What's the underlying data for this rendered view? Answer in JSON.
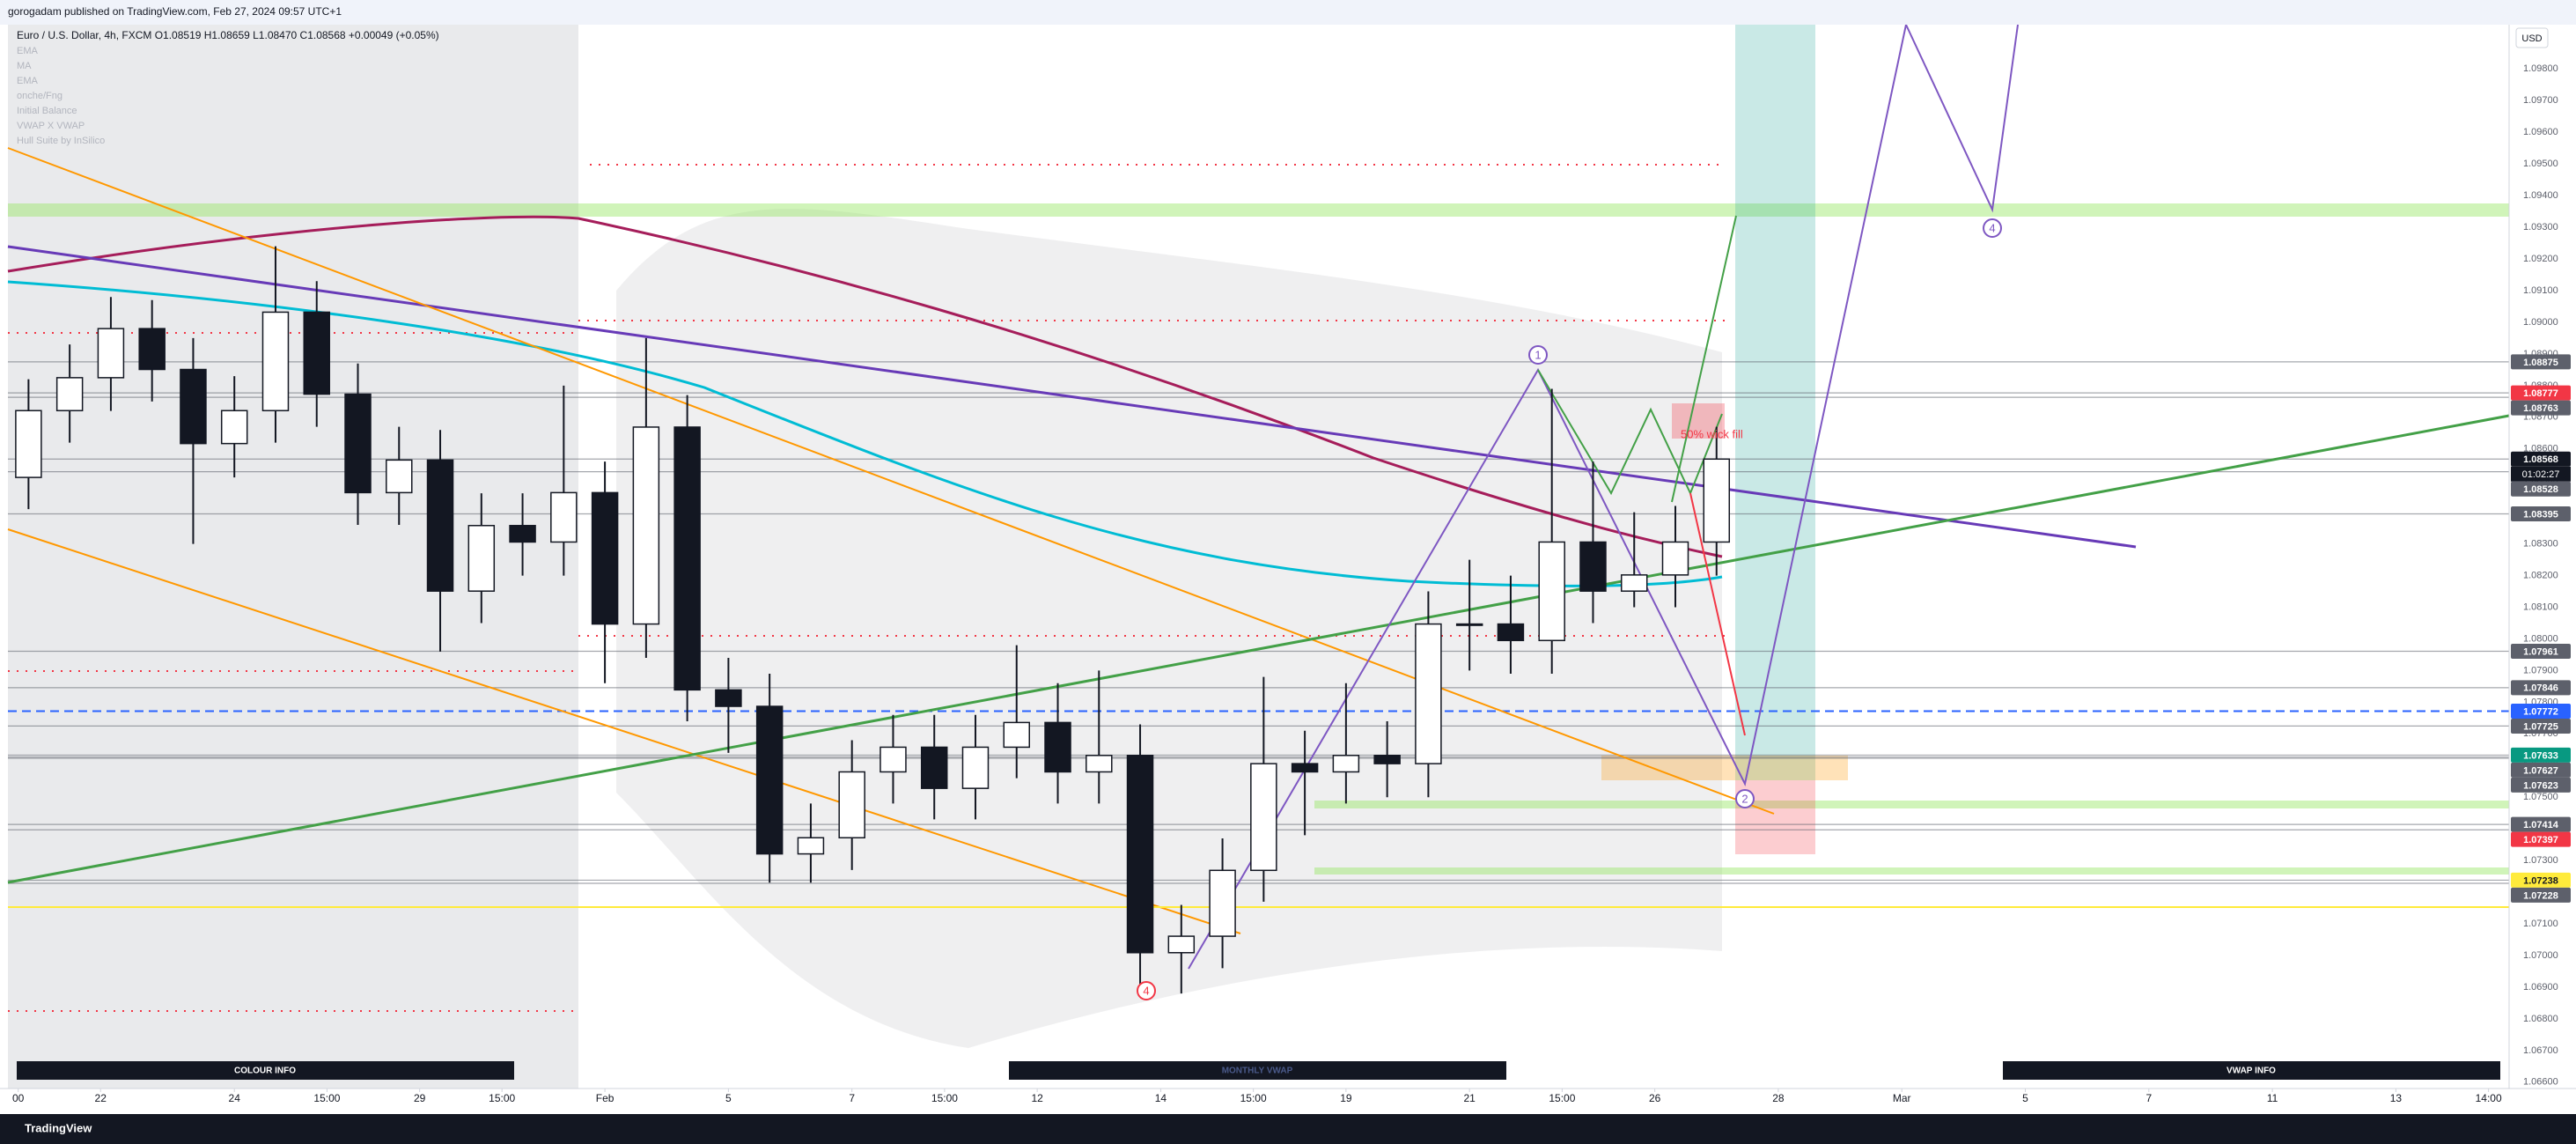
{
  "header": "gorogadam published on TradingView.com, Feb 27, 2024 09:57 UTC+1",
  "footer": "TradingView",
  "chart_data": {
    "type": "candlestick",
    "legend": "Euro / U.S. Dollar, 4h, FXCM O1.08519 H1.08659 L1.08470 C1.08568 +0.00049 (+0.05%)",
    "indicators": [
      "EMA",
      "MA",
      "EMA",
      "onche/Fng",
      "Initial Balance",
      "VWAP X VWAP",
      "Hull Suite by InSilico"
    ],
    "currency": "USD",
    "countdown": "01:02:27",
    "up_color": "#ffffff",
    "down_color": "#131722",
    "x": [
      2,
      6,
      10,
      14,
      18,
      22,
      26,
      30,
      34,
      38,
      42,
      46,
      50,
      54,
      58,
      62,
      66,
      70,
      74,
      78,
      82,
      86,
      90,
      94,
      98,
      102,
      106,
      110,
      114,
      118,
      122,
      126,
      130,
      134,
      138,
      142,
      146,
      150,
      154,
      158,
      162,
      166
    ],
    "open": [
      1.0851,
      1.08721,
      1.08825,
      1.0898,
      1.08851,
      1.08617,
      1.08721,
      1.09032,
      1.08773,
      1.08462,
      1.08565,
      1.08151,
      1.08358,
      1.08306,
      1.08462,
      1.08047,
      1.08669,
      1.07839,
      1.07787,
      1.07321,
      1.07372,
      1.0758,
      1.07658,
      1.07528,
      1.07658,
      1.07736,
      1.0758,
      1.07632,
      1.07009,
      1.07061,
      1.07269,
      1.07606,
      1.0758,
      1.07632,
      1.07606,
      1.08047,
      1.08047,
      1.07995,
      1.08306,
      1.08151,
      1.08202,
      1.08306
    ],
    "high": [
      1.0882,
      1.0893,
      1.0908,
      1.0907,
      1.0895,
      1.0883,
      1.0924,
      1.0913,
      1.0887,
      1.0867,
      1.0866,
      1.0846,
      1.0846,
      1.088,
      1.0856,
      1.0895,
      1.0877,
      1.0794,
      1.0789,
      1.0748,
      1.0768,
      1.0776,
      1.0776,
      1.0776,
      1.0798,
      1.0786,
      1.079,
      1.0773,
      1.0716,
      1.0737,
      1.0788,
      1.0771,
      1.0786,
      1.0774,
      1.0815,
      1.0825,
      1.082,
      1.0879,
      1.0856,
      1.084,
      1.0842,
      1.0867
    ],
    "low": [
      1.0841,
      1.0862,
      1.0872,
      1.0875,
      1.083,
      1.0851,
      1.0862,
      1.0867,
      1.0836,
      1.0836,
      1.0796,
      1.0805,
      1.082,
      1.082,
      1.0786,
      1.0794,
      1.0774,
      1.0764,
      1.0723,
      1.0723,
      1.0727,
      1.0748,
      1.0743,
      1.0743,
      1.0756,
      1.0748,
      1.0748,
      1.0691,
      1.0688,
      1.0696,
      1.0717,
      1.0738,
      1.0748,
      1.075,
      1.075,
      1.079,
      1.0789,
      1.0789,
      1.0805,
      1.081,
      1.081,
      1.082
    ],
    "close": [
      1.08721,
      1.08825,
      1.0898,
      1.08851,
      1.08617,
      1.08721,
      1.09032,
      1.08773,
      1.08462,
      1.08565,
      1.08151,
      1.08358,
      1.08306,
      1.08462,
      1.08047,
      1.08669,
      1.07839,
      1.07787,
      1.07321,
      1.07372,
      1.0758,
      1.07658,
      1.07528,
      1.07658,
      1.07736,
      1.0758,
      1.07632,
      1.07009,
      1.07061,
      1.07269,
      1.07606,
      1.0758,
      1.07632,
      1.07606,
      1.08047,
      1.08047,
      1.07995,
      1.08306,
      1.08151,
      1.08202,
      1.08306,
      1.08568
    ],
    "xlim": [
      0,
      243
    ],
    "ylim": [
      1.0658,
      1.0994
    ],
    "xticks": [
      {
        "value": 1,
        "label": "00"
      },
      {
        "value": 9,
        "label": "22"
      },
      {
        "value": 22,
        "label": "24"
      },
      {
        "value": 31,
        "label": "15:00"
      },
      {
        "value": 40,
        "label": "29"
      },
      {
        "value": 48,
        "label": "15:00"
      },
      {
        "value": 58,
        "label": "Feb"
      },
      {
        "value": 70,
        "label": "5"
      },
      {
        "value": 82,
        "label": "7"
      },
      {
        "value": 91,
        "label": "15:00"
      },
      {
        "value": 100,
        "label": "12"
      },
      {
        "value": 112,
        "label": "14"
      },
      {
        "value": 121,
        "label": "15:00"
      },
      {
        "value": 130,
        "label": "19"
      },
      {
        "value": 142,
        "label": "21"
      },
      {
        "value": 151,
        "label": "15:00"
      },
      {
        "value": 160,
        "label": "26"
      },
      {
        "value": 172,
        "label": "28"
      },
      {
        "value": 184,
        "label": "Mar"
      },
      {
        "value": 196,
        "label": "5"
      },
      {
        "value": 208,
        "label": "7"
      },
      {
        "value": 220,
        "label": "11"
      },
      {
        "value": 232,
        "label": "13"
      },
      {
        "value": 241,
        "label": "14:00"
      }
    ],
    "yticks": [
      {
        "value": 1.066,
        "label": "1.06600"
      },
      {
        "value": 1.067,
        "label": "1.06700"
      },
      {
        "value": 1.068,
        "label": "1.06800"
      },
      {
        "value": 1.069,
        "label": "1.06900"
      },
      {
        "value": 1.07,
        "label": "1.07000"
      },
      {
        "value": 1.071,
        "label": "1.07100"
      },
      {
        "value": 1.072,
        "label": "1.07200"
      },
      {
        "value": 1.073,
        "label": "1.07300"
      },
      {
        "value": 1.074,
        "label": "1.07400"
      },
      {
        "value": 1.075,
        "label": "1.07500"
      },
      {
        "value": 1.076,
        "label": "1.07600"
      },
      {
        "value": 1.077,
        "label": "1.07700"
      },
      {
        "value": 1.078,
        "label": "1.07800"
      },
      {
        "value": 1.079,
        "label": "1.07900"
      },
      {
        "value": 1.08,
        "label": "1.08000"
      },
      {
        "value": 1.081,
        "label": "1.08100"
      },
      {
        "value": 1.082,
        "label": "1.08200"
      },
      {
        "value": 1.083,
        "label": "1.08300"
      },
      {
        "value": 1.084,
        "label": "1.08400"
      },
      {
        "value": 1.085,
        "label": "1.08500"
      },
      {
        "value": 1.086,
        "label": "1.08600"
      },
      {
        "value": 1.087,
        "label": "1.08700"
      },
      {
        "value": 1.088,
        "label": "1.08800"
      },
      {
        "value": 1.089,
        "label": "1.08900"
      },
      {
        "value": 1.09,
        "label": "1.09000"
      },
      {
        "value": 1.091,
        "label": "1.09100"
      },
      {
        "value": 1.092,
        "label": "1.09200"
      },
      {
        "value": 1.093,
        "label": "1.09300"
      },
      {
        "value": 1.094,
        "label": "1.09400"
      },
      {
        "value": 1.095,
        "label": "1.09500"
      },
      {
        "value": 1.096,
        "label": "1.09600"
      },
      {
        "value": 1.097,
        "label": "1.09700"
      },
      {
        "value": 1.098,
        "label": "1.09800"
      }
    ],
    "price_labels": {
      "values": [
        1.08875,
        1.08777,
        1.08763,
        1.08568,
        1.08528,
        1.08395,
        1.07961,
        1.07846,
        1.07772,
        1.07725,
        1.07633,
        1.07627,
        1.07623,
        1.07414,
        1.07397,
        1.07238,
        1.07228
      ],
      "colors": [
        "#5d606b",
        "#f23645",
        "#5d606b",
        "#131722",
        "#5d606b",
        "#5d606b",
        "#5d606b",
        "#5d606b",
        "#2962ff",
        "#5d606b",
        "#089981",
        "#5d606b",
        "#5d606b",
        "#5d606b",
        "#f23645",
        "#ffeb3b",
        "#5d606b"
      ]
    },
    "annotations": [
      "50% wick fill",
      "1",
      "2",
      "4",
      "4"
    ],
    "panels": [
      "COLOUR INFO",
      "MONTHLY VWAP",
      "VWAP INFO"
    ]
  }
}
